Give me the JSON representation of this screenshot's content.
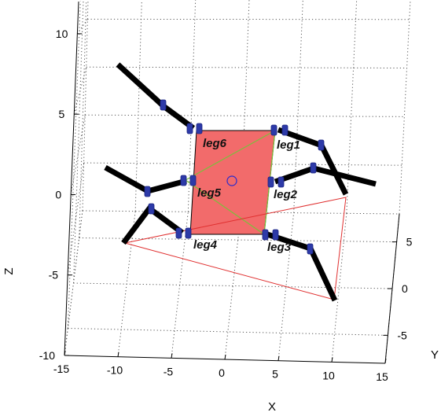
{
  "chart_data": {
    "type": "3d-line",
    "xlabel": "X",
    "ylabel": "Y",
    "zlabel": "Z",
    "x_ticks": [
      "-15",
      "-10",
      "-5",
      "0",
      "5",
      "10",
      "15"
    ],
    "y_ticks": [
      "-5",
      "0",
      "5"
    ],
    "z_ticks": [
      "-10",
      "-5",
      "0",
      "5",
      "10"
    ],
    "xlim": [
      -15,
      15
    ],
    "ylim": [
      -8,
      8
    ],
    "zlim": [
      -10,
      12
    ],
    "grid": true,
    "body_color": "#f26b6b",
    "support_triangle_color": "#e03030",
    "diagonal_color": "#7bbf3c",
    "leg_color": "#000000",
    "joint_color": "#2d3aa8",
    "center_marker_color": "#2b2bcc",
    "legs": [
      {
        "name": "leg1",
        "label": "leg1"
      },
      {
        "name": "leg2",
        "label": "leg2"
      },
      {
        "name": "leg3",
        "label": "leg3"
      },
      {
        "name": "leg4",
        "label": "leg4"
      },
      {
        "name": "leg5",
        "label": "leg5"
      },
      {
        "name": "leg6",
        "label": "leg6"
      }
    ]
  }
}
